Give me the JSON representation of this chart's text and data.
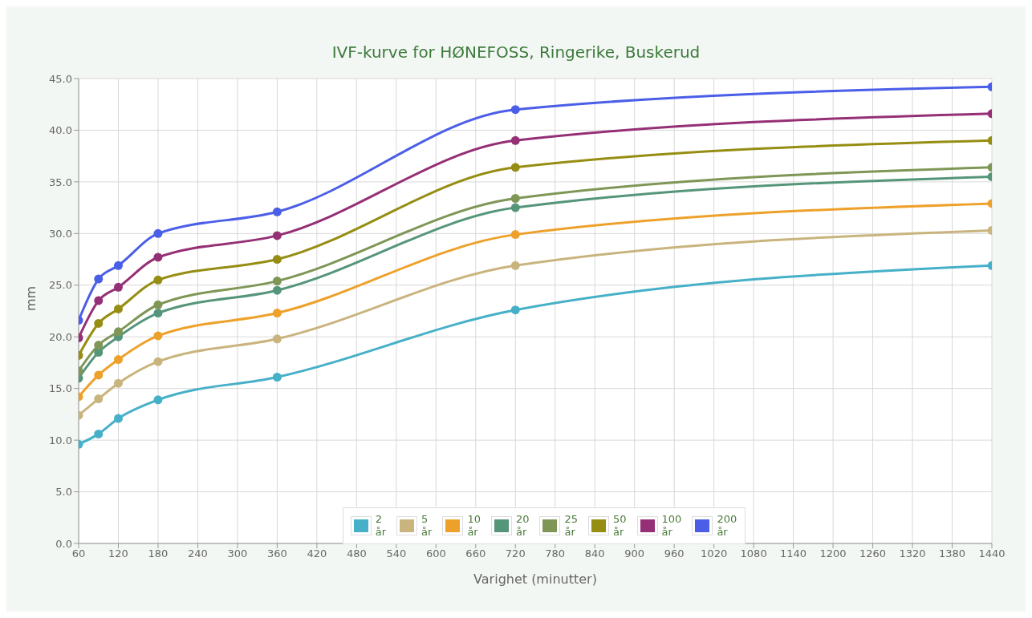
{
  "chart_data": {
    "type": "line",
    "title": "IVF-kurve for HØNEFOSS, Ringerike, Buskerud",
    "xlabel": "Varighet (minutter)",
    "ylabel": "mm",
    "x": [
      60,
      90,
      120,
      180,
      360,
      720,
      1440
    ],
    "xlim": [
      60,
      1440
    ],
    "xticks": [
      60,
      120,
      180,
      240,
      300,
      360,
      420,
      480,
      540,
      600,
      660,
      720,
      780,
      840,
      900,
      960,
      1020,
      1080,
      1140,
      1200,
      1260,
      1320,
      1380,
      1440
    ],
    "ylim": [
      0,
      45
    ],
    "yticks": [
      {
        "value": 0,
        "label": "0.0"
      },
      {
        "value": 5,
        "label": "5.0"
      },
      {
        "value": 10,
        "label": "10.0"
      },
      {
        "value": 15,
        "label": "15.0"
      },
      {
        "value": 20,
        "label": "20.0"
      },
      {
        "value": 25,
        "label": "25.0"
      },
      {
        "value": 30,
        "label": "30.0"
      },
      {
        "value": 35,
        "label": "35.0"
      },
      {
        "value": 40,
        "label": "40.0"
      },
      {
        "value": 45,
        "label": "45.0"
      }
    ],
    "grid": true,
    "legend": "bottom",
    "marker": "circle",
    "line_style": "solid",
    "series": [
      {
        "name": "2 år",
        "color": "#46b0c8",
        "values": [
          9.6,
          10.6,
          12.1,
          13.9,
          16.1,
          22.6,
          26.9
        ]
      },
      {
        "name": "5 år",
        "color": "#c9b47e",
        "values": [
          12.4,
          14.0,
          15.5,
          17.6,
          19.8,
          26.9,
          30.3
        ]
      },
      {
        "name": "10 år",
        "color": "#eea12a",
        "values": [
          14.2,
          16.3,
          17.8,
          20.1,
          22.3,
          29.9,
          32.9
        ]
      },
      {
        "name": "20 år",
        "color": "#55957a",
        "values": [
          16.0,
          18.5,
          20.0,
          22.3,
          24.5,
          32.5,
          35.5
        ]
      },
      {
        "name": "25 år",
        "color": "#7f9656",
        "values": [
          16.7,
          19.2,
          20.5,
          23.1,
          25.4,
          33.4,
          36.4
        ]
      },
      {
        "name": "50 år",
        "color": "#968d13",
        "values": [
          18.2,
          21.3,
          22.7,
          25.5,
          27.5,
          36.4,
          39.0
        ]
      },
      {
        "name": "100 år",
        "color": "#952f76",
        "values": [
          19.9,
          23.5,
          24.8,
          27.7,
          29.8,
          39.0,
          41.6
        ]
      },
      {
        "name": "200 år",
        "color": "#4b5ee8",
        "values": [
          21.6,
          25.6,
          26.9,
          30.0,
          32.1,
          42.0,
          44.2
        ]
      }
    ]
  }
}
